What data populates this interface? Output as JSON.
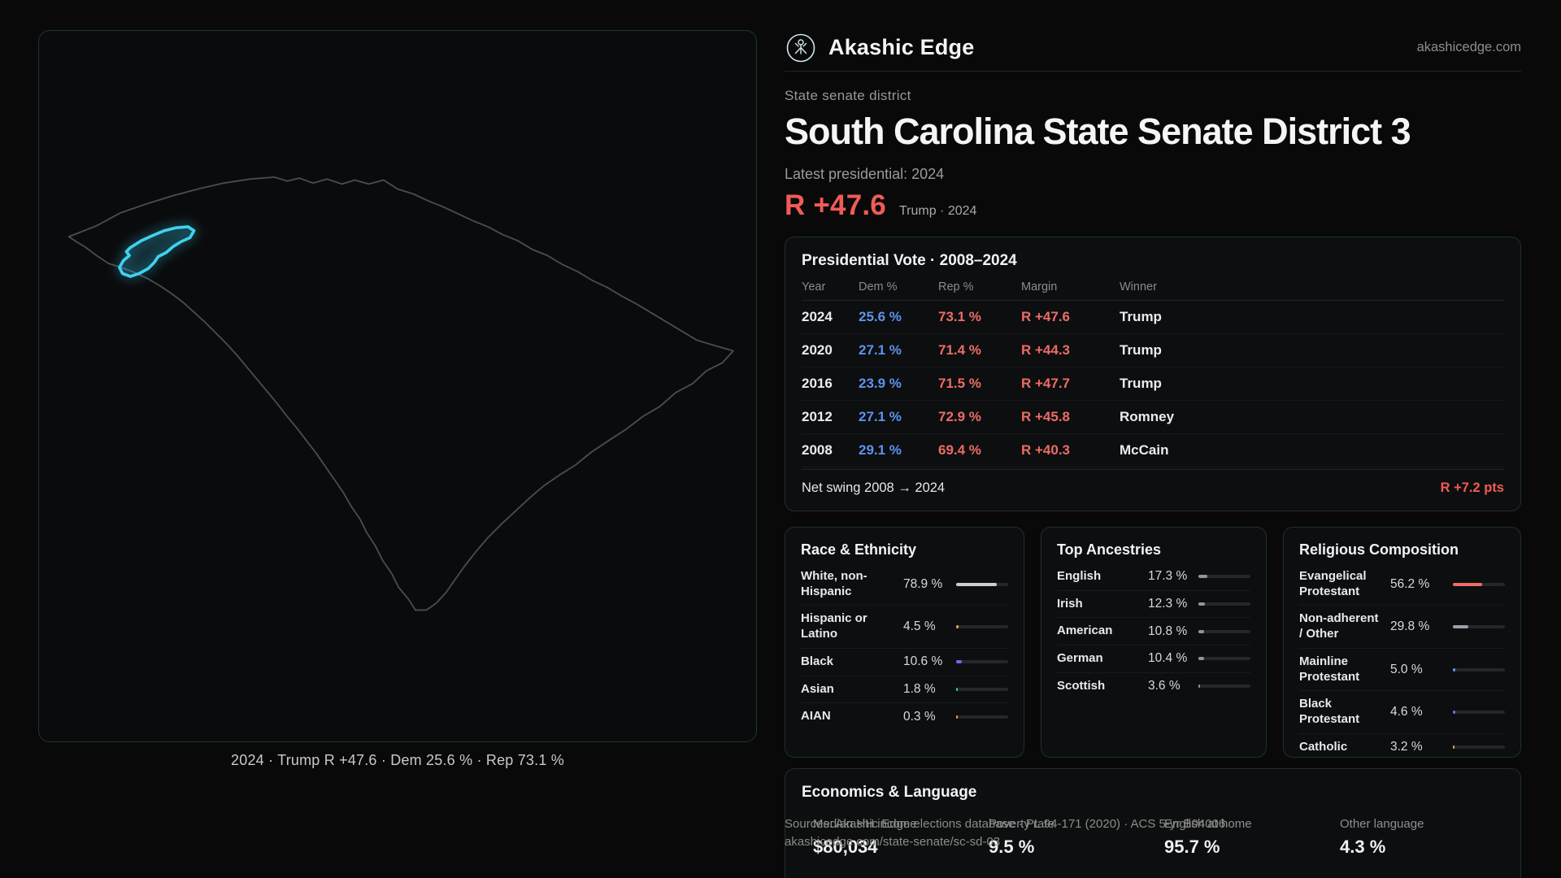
{
  "brand": {
    "name": "Akashic Edge",
    "domain": "akashicedge.com"
  },
  "map": {
    "caption": "2024 · Trump R +47.6 · Dem 25.6 % · Rep 73.1 %"
  },
  "page": {
    "eyebrow": "State senate district",
    "title": "South Carolina State Senate District 3",
    "latest": "Latest presidential: 2024",
    "margin_value": "R +47.6",
    "margin_context": "Trump · 2024"
  },
  "presidential": {
    "title": "Presidential Vote · 2008–2024",
    "columns": {
      "year": "Year",
      "dem": "Dem %",
      "rep": "Rep %",
      "margin": "Margin",
      "winner": "Winner"
    },
    "rows": [
      {
        "year": "2024",
        "dem": "25.6 %",
        "rep": "73.1 %",
        "margin": "R +47.6",
        "winner": "Trump"
      },
      {
        "year": "2020",
        "dem": "27.1 %",
        "rep": "71.4 %",
        "margin": "R +44.3",
        "winner": "Trump"
      },
      {
        "year": "2016",
        "dem": "23.9 %",
        "rep": "71.5 %",
        "margin": "R +47.7",
        "winner": "Trump"
      },
      {
        "year": "2012",
        "dem": "27.1 %",
        "rep": "72.9 %",
        "margin": "R +45.8",
        "winner": "Romney"
      },
      {
        "year": "2008",
        "dem": "29.1 %",
        "rep": "69.4 %",
        "margin": "R +40.3",
        "winner": "McCain"
      }
    ],
    "swing_label": "Net swing 2008 → 2024",
    "swing_value": "R +7.2 pts"
  },
  "race": {
    "title": "Race & Ethnicity",
    "rows": [
      {
        "label": "White, non-Hispanic",
        "value": "78.9 %",
        "pct": 78.9,
        "color": "#c9cdd6"
      },
      {
        "label": "Hispanic or Latino",
        "value": "4.5 %",
        "pct": 4.5,
        "color": "#e5a23c"
      },
      {
        "label": "Black",
        "value": "10.6 %",
        "pct": 10.6,
        "color": "#6f6af0"
      },
      {
        "label": "Asian",
        "value": "1.8 %",
        "pct": 1.8,
        "color": "#2fd08c"
      },
      {
        "label": "AIAN",
        "value": "0.3 %",
        "pct": 0.3,
        "color": "#e5a23c"
      }
    ]
  },
  "ancestries": {
    "title": "Top Ancestries",
    "rows": [
      {
        "label": "English",
        "value": "17.3 %",
        "pct": 17.3,
        "color": "#8f969e"
      },
      {
        "label": "Irish",
        "value": "12.3 %",
        "pct": 12.3,
        "color": "#8f969e"
      },
      {
        "label": "American",
        "value": "10.8 %",
        "pct": 10.8,
        "color": "#8f969e"
      },
      {
        "label": "German",
        "value": "10.4 %",
        "pct": 10.4,
        "color": "#8f969e"
      },
      {
        "label": "Scottish",
        "value": "3.6 %",
        "pct": 3.6,
        "color": "#8f969e"
      }
    ]
  },
  "religion": {
    "title": "Religious Composition",
    "rows": [
      {
        "label": "Evangelical Protestant",
        "value": "56.2 %",
        "pct": 56.2,
        "color": "#ef6b66"
      },
      {
        "label": "Non-adherent / Other",
        "value": "29.8 %",
        "pct": 29.8,
        "color": "#9aa1a8"
      },
      {
        "label": "Mainline Protestant",
        "value": "5.0 %",
        "pct": 5.0,
        "color": "#5e92ef"
      },
      {
        "label": "Black Protestant",
        "value": "4.6 %",
        "pct": 4.6,
        "color": "#6f6af0"
      },
      {
        "label": "Catholic",
        "value": "3.2 %",
        "pct": 3.2,
        "color": "#e5a23c"
      }
    ]
  },
  "economics": {
    "title": "Economics & Language",
    "stats": [
      {
        "label": "Median HH income",
        "value": "$80,034"
      },
      {
        "label": "Poverty rate",
        "value": "9.5 %"
      },
      {
        "label": "English at home",
        "value": "95.7 %"
      },
      {
        "label": "Other language",
        "value": "4.3 %"
      }
    ]
  },
  "sources": {
    "line1": "Sources: Akashic Edge elections database · PL 94-171 (2020) · ACS 5-yr B04006",
    "line2": "akashicedge.com/state-senate/sc-sd-03"
  },
  "colors": {
    "accent_cyan": "#3ed2ef",
    "dem_blue": "#5e92ef",
    "rep_red": "#ee6b66",
    "margin_red": "#f15b55"
  }
}
